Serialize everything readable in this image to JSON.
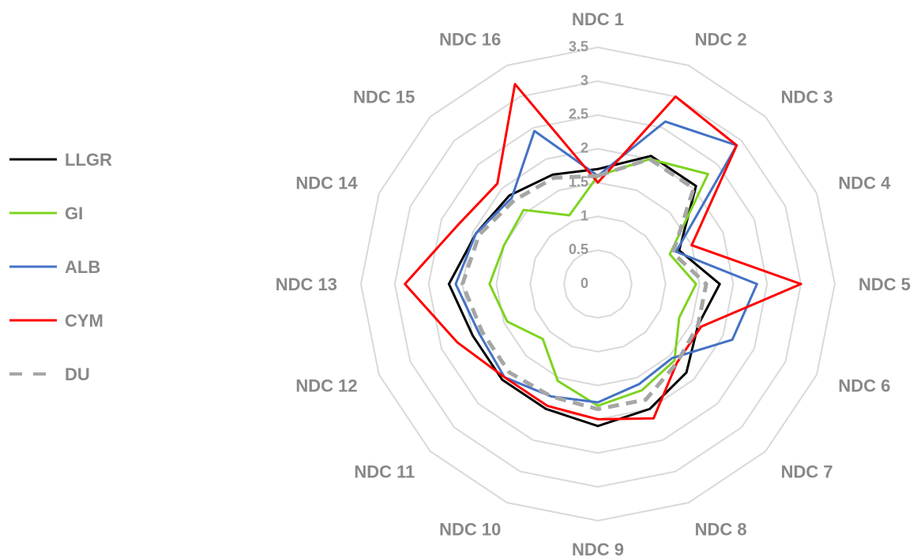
{
  "chart_data": {
    "type": "radar",
    "categories": [
      "NDC 1",
      "NDC 2",
      "NDC 3",
      "NDC 4",
      "NDC 5",
      "NDC 6",
      "NDC 7",
      "NDC 8",
      "NDC 9",
      "NDC 10",
      "NDC 11",
      "NDC 12",
      "NDC 13",
      "NDC 14",
      "NDC 15",
      "NDC 16"
    ],
    "rlim": [
      0,
      3.5
    ],
    "ticks": [
      "0",
      "0.5",
      "1",
      "1.5",
      "2",
      "2.5",
      "3",
      "3.5"
    ],
    "grid": true,
    "legend_position": "left",
    "series": [
      {
        "name": "LLGR",
        "color": "#000000",
        "dash": false,
        "values": [
          1.7,
          2.05,
          2.05,
          1.3,
          1.8,
          1.6,
          1.85,
          2.0,
          2.1,
          2.0,
          2.0,
          2.0,
          2.2,
          1.95,
          1.85,
          1.75
        ]
      },
      {
        "name": "GI",
        "color": "#7ED321",
        "dash": false,
        "values": [
          1.6,
          2.0,
          2.3,
          1.15,
          1.45,
          1.3,
          1.6,
          1.7,
          1.8,
          1.55,
          1.15,
          1.45,
          1.6,
          1.5,
          1.55,
          1.1
        ]
      },
      {
        "name": "ALB",
        "color": "#4472C4",
        "dash": false,
        "values": [
          1.6,
          2.6,
          2.9,
          1.25,
          2.35,
          2.15,
          1.55,
          1.6,
          1.75,
          1.8,
          1.95,
          1.9,
          2.1,
          1.95,
          1.8,
          2.45
        ]
      },
      {
        "name": "CYM",
        "color": "#FF0000",
        "dash": false,
        "values": [
          1.5,
          3.0,
          2.9,
          1.5,
          3.0,
          1.65,
          1.65,
          2.15,
          2.0,
          1.95,
          1.95,
          2.25,
          2.85,
          2.25,
          2.1,
          3.2
        ]
      },
      {
        "name": "DU",
        "color": "#A6A6A6",
        "dash": true,
        "values": [
          1.6,
          2.0,
          2.0,
          1.2,
          1.6,
          1.6,
          1.65,
          1.85,
          1.85,
          1.8,
          1.85,
          1.85,
          2.0,
          1.9,
          1.75,
          1.7
        ]
      }
    ]
  }
}
